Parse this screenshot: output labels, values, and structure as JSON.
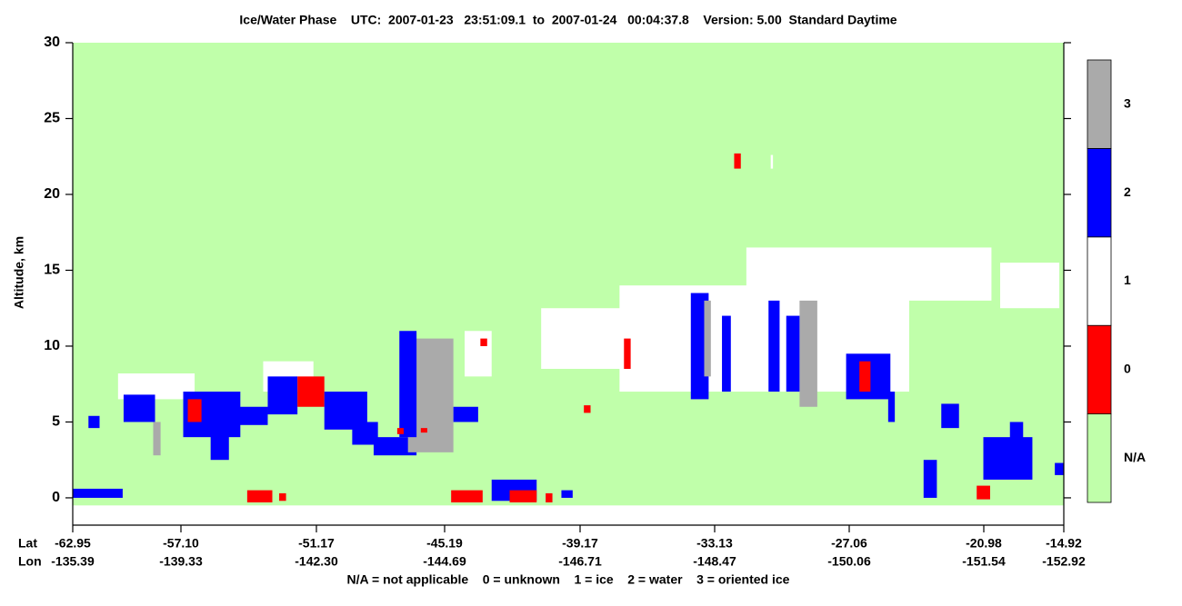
{
  "chart_data": {
    "type": "phase-curtain",
    "title": "Ice/Water Phase    UTC:  2007-01-23   23:51:09.1  to  2007-01-24   00:04:37.8    Version: 5.00  Standard Daytime",
    "y_label": "Altitude, km",
    "lat_label": "Lat",
    "lon_label": "Lon",
    "legend_note": "N/A = not applicable    0 = unknown    1 = ice    2 = water    3 = oriented ice",
    "ylim": [
      -1.8,
      30
    ],
    "yticks": [
      0,
      5,
      10,
      15,
      20,
      25,
      30
    ],
    "xlim": [
      -62.95,
      -14.92
    ],
    "xticks": [
      {
        "value": -62.95,
        "label": "-62.95"
      },
      {
        "value": -57.1,
        "label": "-57.10"
      },
      {
        "value": -51.17,
        "label": "-51.17"
      },
      {
        "value": -45.19,
        "label": "-45.19"
      },
      {
        "value": -39.17,
        "label": "-39.17"
      },
      {
        "value": -33.13,
        "label": "-33.13"
      },
      {
        "value": -27.06,
        "label": "-27.06"
      },
      {
        "value": -20.98,
        "label": "-20.98"
      },
      {
        "value": -14.92,
        "label": "-14.92"
      }
    ],
    "xtick_lon": [
      "-135.39",
      "-139.33",
      "-142.30",
      "-144.69",
      "-146.71",
      "-148.47",
      "-150.06",
      "-151.54",
      "-152.92"
    ],
    "phases": [
      {
        "label": "N/A",
        "color": "#c0ffaa"
      },
      {
        "label": "0",
        "color": "#ff0000"
      },
      {
        "label": "1",
        "color": "#ffffff"
      },
      {
        "label": "2",
        "color": "#0000ff"
      },
      {
        "label": "3",
        "color": "#aaaaaa"
      }
    ],
    "cells": [
      [
        -62.95,
        -14.92,
        -0.5,
        30,
        0
      ],
      [
        -40.9,
        -34.2,
        8.5,
        12.5,
        2
      ],
      [
        -37.4,
        -24.35,
        7,
        14,
        2
      ],
      [
        -31.7,
        -20.4,
        13,
        16.5,
        2
      ],
      [
        -19.74,
        -15.26,
        12.5,
        15.5,
        2
      ],
      [
        -62.95,
        -60.25,
        0,
        0.6,
        3
      ],
      [
        -62.1,
        -61.5,
        4.6,
        5.4,
        3
      ],
      [
        -60.5,
        -56.5,
        6.5,
        8.2,
        2
      ],
      [
        -60.2,
        -58.5,
        5,
        6.8,
        3
      ],
      [
        -58.6,
        -58.2,
        2.8,
        5,
        4
      ],
      [
        -57.0,
        -54.5,
        4,
        7,
        3
      ],
      [
        -56.8,
        -56.2,
        5,
        6.5,
        1
      ],
      [
        -55.8,
        -55.0,
        2.5,
        5,
        3
      ],
      [
        -54.8,
        -53.3,
        4.8,
        6,
        3
      ],
      [
        -54.2,
        -53.1,
        -0.3,
        0.5,
        1
      ],
      [
        -52.8,
        -52.5,
        -0.2,
        0.3,
        1
      ],
      [
        -53.5,
        -51.3,
        7,
        9,
        2
      ],
      [
        -53.3,
        -52.0,
        5.5,
        8,
        3
      ],
      [
        -52.0,
        -50.8,
        6,
        8,
        1
      ],
      [
        -50.8,
        -48.8,
        4.5,
        7,
        3
      ],
      [
        -49.5,
        -48.3,
        3.5,
        5,
        3
      ],
      [
        -48.5,
        -46.5,
        2.8,
        4,
        3
      ],
      [
        -46.9,
        -44.8,
        3,
        10.5,
        4
      ],
      [
        -47.3,
        -46.5,
        4,
        11,
        3
      ],
      [
        -44.8,
        -43.7,
        5,
        6,
        3
      ],
      [
        -44.3,
        -43.1,
        8,
        11,
        2
      ],
      [
        -43.6,
        -43.3,
        10,
        10.5,
        1
      ],
      [
        -47.4,
        -47.1,
        4.2,
        4.6,
        1
      ],
      [
        -46.3,
        -46.0,
        4.3,
        4.6,
        1
      ],
      [
        -44.9,
        -43.5,
        -0.3,
        0.5,
        1
      ],
      [
        -43.1,
        -41.1,
        -0.2,
        1.2,
        3
      ],
      [
        -42.3,
        -41.1,
        -0.3,
        0.5,
        1
      ],
      [
        -40.7,
        -40.4,
        -0.3,
        0.3,
        1
      ],
      [
        -40.0,
        -39.5,
        0,
        0.5,
        3
      ],
      [
        -39.0,
        -38.7,
        5.6,
        6.1,
        1
      ],
      [
        -32.25,
        -31.95,
        21.7,
        22.7,
        1
      ],
      [
        -30.6,
        -30.5,
        21.7,
        22.6,
        2
      ],
      [
        -34.2,
        -33.4,
        6.5,
        13.5,
        3
      ],
      [
        -33.6,
        -33.3,
        8,
        13,
        4
      ],
      [
        -32.8,
        -32.4,
        7,
        12,
        3
      ],
      [
        -30.7,
        -30.2,
        7,
        13,
        3
      ],
      [
        -29.3,
        -28.5,
        6,
        13,
        4
      ],
      [
        -29.9,
        -29.3,
        7,
        12,
        3
      ],
      [
        -27.2,
        -25.2,
        6.5,
        9.5,
        3
      ],
      [
        -26.6,
        -26.1,
        7,
        9,
        1
      ],
      [
        -25.3,
        -25.0,
        5,
        7,
        3
      ],
      [
        -37.2,
        -36.9,
        8.5,
        10.5,
        1
      ],
      [
        -22.9,
        -22.1,
        4.6,
        6.2,
        3
      ],
      [
        -23.7,
        -23.1,
        0,
        2.5,
        3
      ],
      [
        -21.0,
        -17.3,
        1.2,
        4,
        3
      ],
      [
        -19.0,
        -18.0,
        3,
        5,
        3
      ],
      [
        -15.6,
        -14.92,
        1.5,
        2.3,
        3
      ],
      [
        -21.3,
        -20.5,
        -0.1,
        0.8,
        1
      ]
    ]
  }
}
